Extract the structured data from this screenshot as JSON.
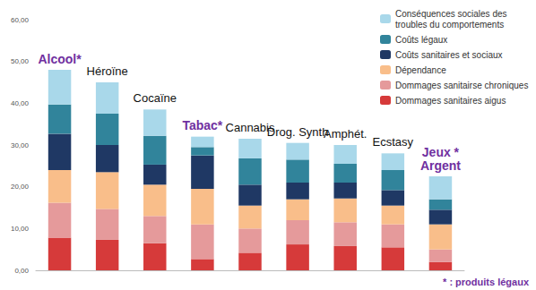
{
  "chart_data": {
    "type": "bar",
    "stacked": true,
    "categories": [
      "Alcool*",
      "Héroïne",
      "Cocaïne",
      "Tabac*",
      "Cannabis",
      "Drog. Synth",
      "Amphét.",
      "Ecstasy",
      "Jeux *\nArgent"
    ],
    "series": [
      {
        "name": "Dommages sanitaires aigus",
        "color": "#d63a3a",
        "values": [
          7.8,
          7.3,
          6.5,
          2.7,
          4.2,
          6.2,
          5.8,
          5.5,
          2.0
        ]
      },
      {
        "name": "Dommages sanitairse chroniques",
        "color": "#e59a9b",
        "values": [
          8.4,
          7.4,
          6.5,
          8.3,
          5.8,
          5.8,
          5.7,
          5.5,
          3.0
        ]
      },
      {
        "name": "Dépendance",
        "color": "#f9be8a",
        "values": [
          7.8,
          8.8,
          7.5,
          8.5,
          5.5,
          5.0,
          5.7,
          4.5,
          6.0
        ]
      },
      {
        "name": "Coûts sanitaires et sociaux",
        "color": "#1f3864",
        "values": [
          8.7,
          6.5,
          4.8,
          8.0,
          5.0,
          4.0,
          3.8,
          3.7,
          3.5
        ]
      },
      {
        "name": "Coûts légaux",
        "color": "#31849b",
        "values": [
          7.0,
          7.5,
          6.9,
          2.0,
          6.3,
          5.5,
          4.5,
          4.8,
          2.5
        ]
      },
      {
        "name": "Conséquences sociales des troubles du comportements",
        "color": "#a9d8ea",
        "values": [
          8.3,
          7.5,
          6.3,
          2.5,
          4.7,
          4.0,
          4.5,
          4.0,
          5.5
        ]
      }
    ],
    "ylim": [
      0,
      60
    ],
    "yticks": [
      {
        "value": 0,
        "label": "0,00"
      },
      {
        "value": 10,
        "label": "10,00"
      },
      {
        "value": 20,
        "label": "20,00"
      },
      {
        "value": 30,
        "label": "30,00"
      },
      {
        "value": 40,
        "label": "40,00"
      },
      {
        "value": 50,
        "label": "50,00"
      },
      {
        "value": 60,
        "label": "60,00"
      }
    ],
    "grid": false,
    "legend": "top right",
    "tick_labels": "y",
    "annotations": [
      "* : produits légaux"
    ]
  }
}
